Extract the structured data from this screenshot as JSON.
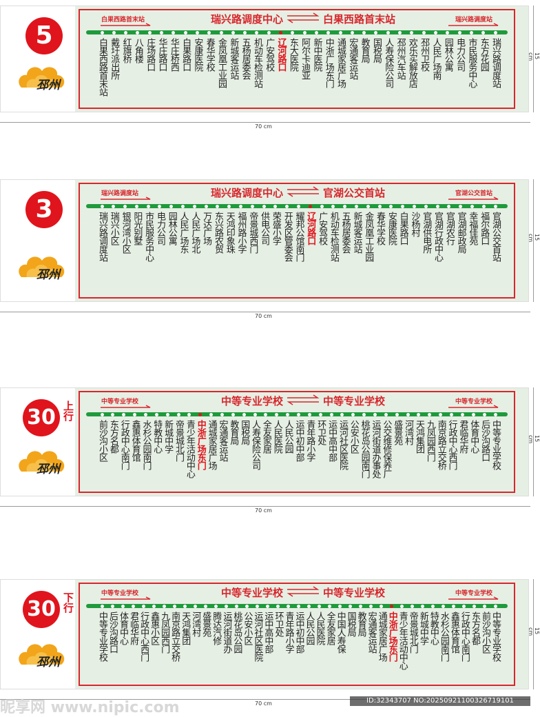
{
  "panels": [
    {
      "route": "5",
      "header": {
        "from": "瑞兴路调度中心",
        "to": "白果西路首末站"
      },
      "left_label": "白果西路首末站",
      "right_label": "瑞兴路调度站",
      "highlight_stops": [
        15
      ],
      "stops": [
        "白果西路首末站",
        "戴圩派出所",
        "红旗桥",
        "八角楼",
        "庄场路口",
        "华庄路口",
        "华庄桥西",
        "白果路口",
        "安康医院",
        "春华学校",
        "金凤凰工业园",
        "新城客运站",
        "五杨居委会",
        "机动车检测站",
        "广安驾校",
        "辽河路口",
        "东大医院",
        "阿尔卡迪亚",
        "新中医院",
        "中浙广场东门",
        "通城家居广场",
        "宏通客运站",
        "教育局",
        "国税局",
        "人寿保险公司",
        "邳州汽车站",
        "欢乐买解放店",
        "邳州卫校",
        "人民广场南",
        "园林公寓",
        "电力公司",
        "市民服务中心",
        "东方花园",
        "瑞兴路调度站"
      ]
    },
    {
      "route": "3",
      "header": {
        "from": "瑞兴路调度中心",
        "to": "官湖公交首站"
      },
      "left_label": "瑞兴路调度站",
      "right_label": "官湖公交首站",
      "highlight_stops": [
        18
      ],
      "stops": [
        "瑞兴路调度站",
        "瑞兴小区",
        "银河湾小区",
        "阳光别墅",
        "市民服务中心",
        "电力公司",
        "园林公寓",
        "人民广场东",
        "人民广场北",
        "万达广场",
        "东兴路农贸",
        "天鸿印象珠",
        "福州路小学",
        "帝景城西门",
        "供电公司",
        "荣盛小学",
        "开发区管委会",
        "耀邦公馆南门",
        "辽河路口",
        "广安驾校",
        "机动车检测站",
        "五杨居委会",
        "新城客运站",
        "金凤凰工业园",
        "春华学校",
        "安康医院",
        "白果路口",
        "沙杨村",
        "官湖供电所",
        "官湖行政中心",
        "官湖农行",
        "官湖邮政局",
        "幸福佳苑",
        "福尔路口",
        "官湖公交首站"
      ]
    },
    {
      "route": "30",
      "route_suffix": "上行",
      "header": {
        "from": "中等专业学校",
        "to": "中等专业学校"
      },
      "left_label": "中等专业学校",
      "right_label": "中等专业学校",
      "highlight_stops": [
        9
      ],
      "stops": [
        "前沙沟小区",
        "东方名都",
        "行政中心南门",
        "鑫惠体育馆",
        "水杉公园南门",
        "特教中心",
        "新城中学",
        "帝景城北门",
        "青少年活动中心",
        "中浙广场东门",
        "通城家居广场",
        "宏通客运站",
        "教育局",
        "国税局",
        "人寿保险公司",
        "全友家居",
        "人民医院",
        "人民公园",
        "运中初中部",
        "青年路小学",
        "环卫处",
        "运中高中部",
        "运河社区医院",
        "公安小区",
        "桃花岛公园南门",
        "运河街道办事处",
        "公交维修保养厂",
        "盛景苑",
        "河湾村",
        "天鸿集团",
        "九凤园西门",
        "南京路立交桥",
        "行政中心西门",
        "君临华府",
        "体育中心",
        "后沙沟路口",
        "中等专业学校"
      ]
    },
    {
      "route": "30",
      "route_suffix": "下行",
      "header": {
        "from": "中等专业学校",
        "to": "中等专业学校"
      },
      "left_label": "中等专业学校",
      "right_label": "中等专业学校",
      "highlight_stops": [
        28
      ],
      "stops": [
        "中等专业学校",
        "后沙沟路口",
        "体育中心",
        "君临华府",
        "行政中心西门",
        "鑫惠小区",
        "九凤园西门",
        "南京路立交桥",
        "天鸿集团",
        "河湾村",
        "盛景苑",
        "腾达汽修",
        "运河街道办",
        "桃花岛公园",
        "公安小区",
        "运河社区医院",
        "运中高中部",
        "环卫处",
        "青年路小学",
        "运中初中部",
        "人民公园",
        "人民医院",
        "全友家居",
        "中国人寿保",
        "国税局",
        "教育局",
        "宏通客运站",
        "通城家居广场",
        "中浙广场东门",
        "青少年活动中心",
        "帝景城北门",
        "新城中学",
        "特教中心",
        "水杉公园南门",
        "鑫惠体育馆",
        "行政中心南门",
        "东方名都",
        "前沙沟小区",
        "中等专业学校"
      ]
    }
  ],
  "logo_text": "邳州",
  "dimensions": {
    "width": "70 cm",
    "height": "15 cm"
  },
  "watermark": {
    "site": "昵享网 www.nipic.com",
    "id": "ID:32343707 NO:20250921100326719101"
  }
}
